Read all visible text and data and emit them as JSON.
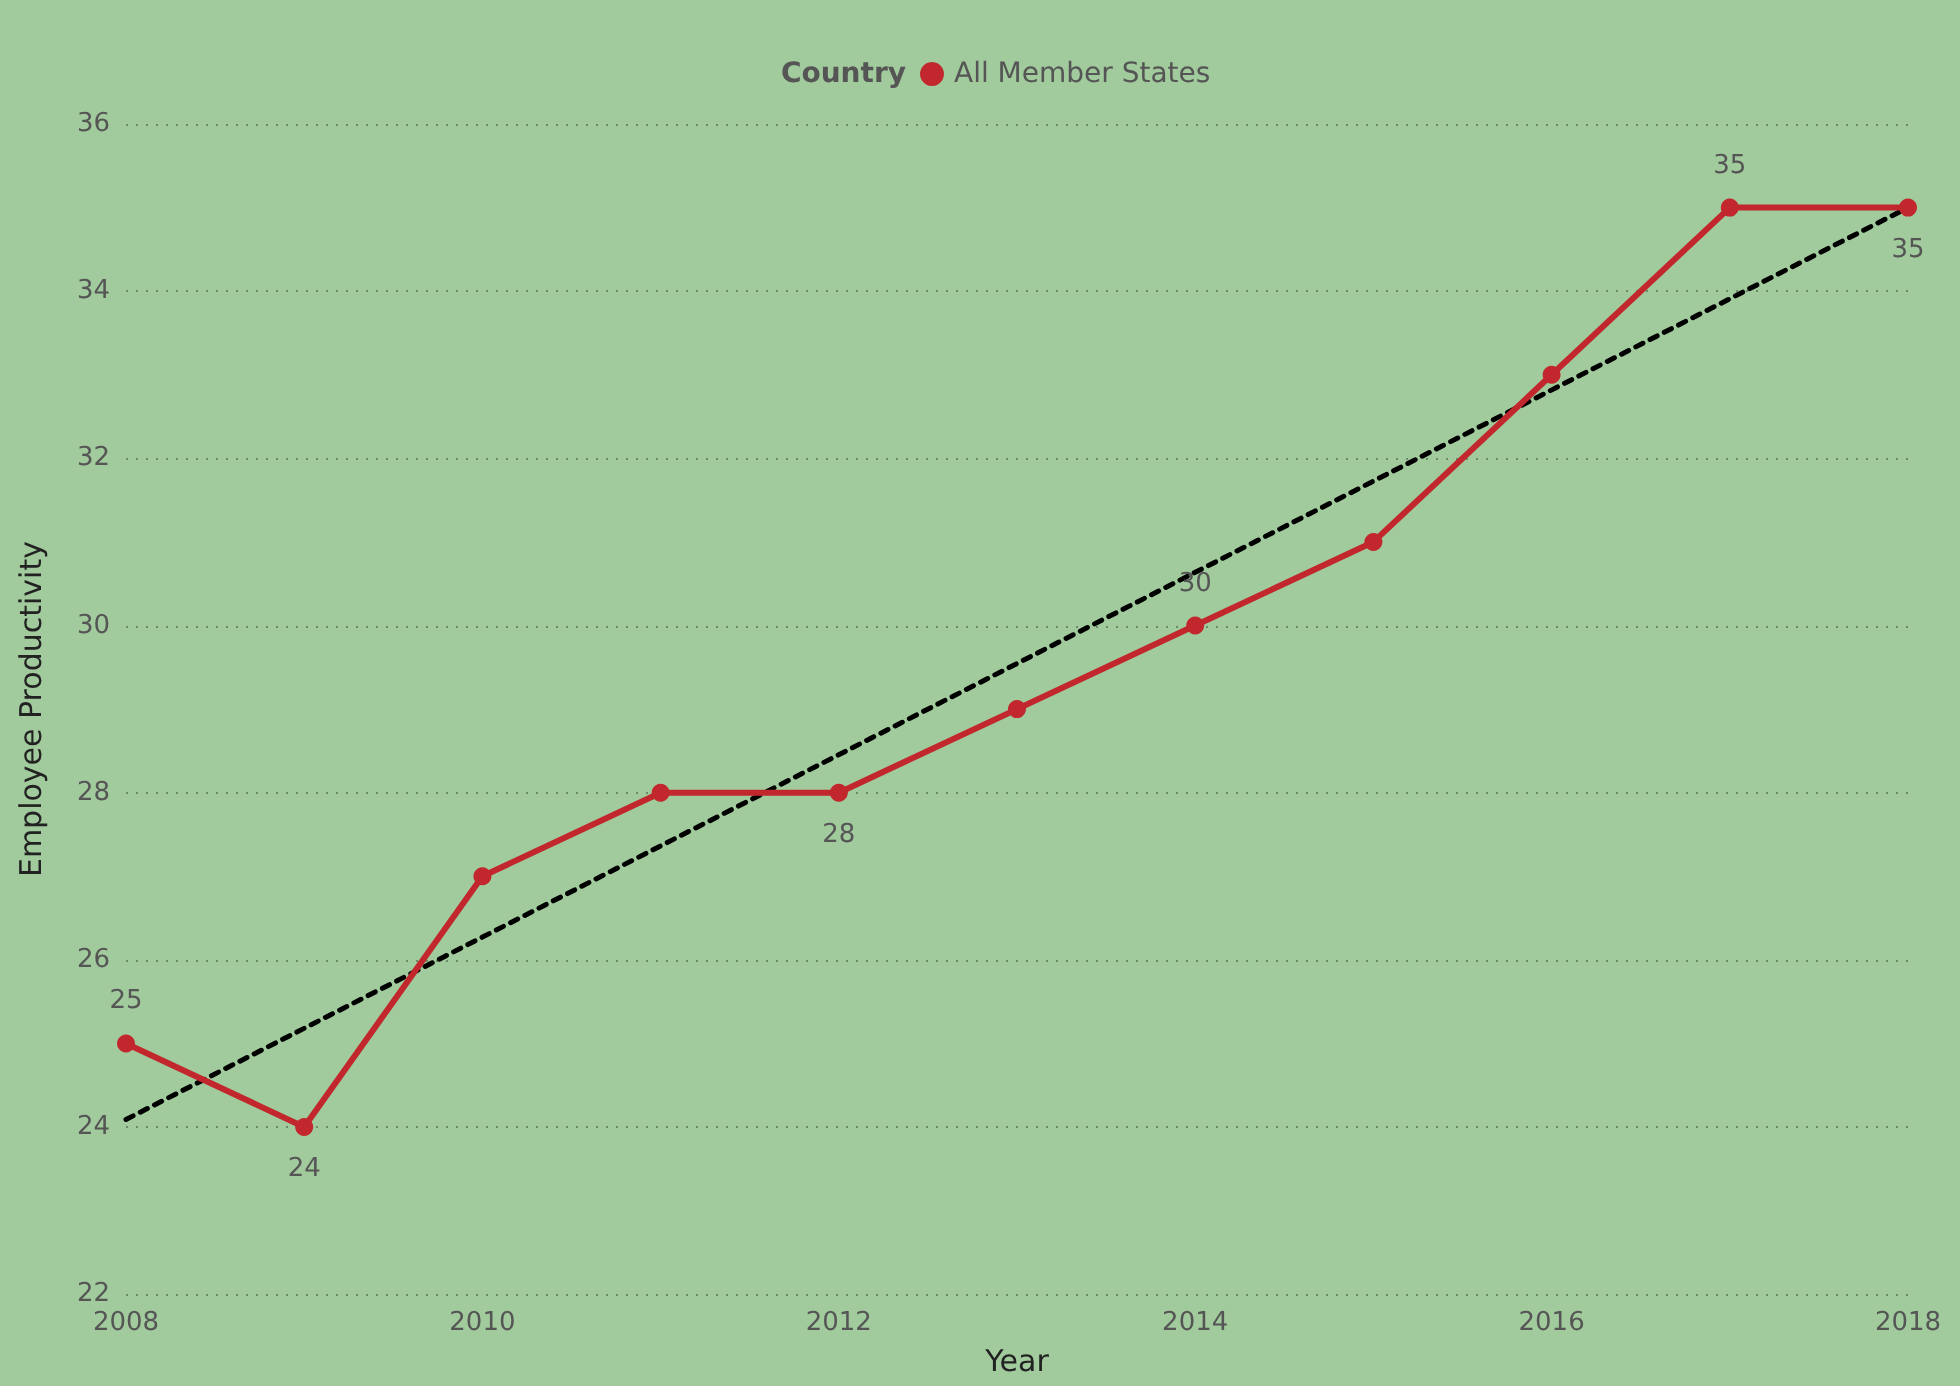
{
  "chart_data": {
    "type": "line",
    "xlabel": "Year",
    "ylabel": "Employee Productivity",
    "legend_title": "Country",
    "legend": "top",
    "grid": "y",
    "marker": "circle",
    "line_style": "solid",
    "x": [
      2008,
      2009,
      2010,
      2011,
      2012,
      2013,
      2014,
      2015,
      2016,
      2017,
      2018
    ],
    "xlim": [
      2008,
      2018
    ],
    "xticks": [
      2008,
      2010,
      2012,
      2014,
      2016,
      2018
    ],
    "ylim": [
      22,
      36
    ],
    "yticks": [
      22,
      24,
      26,
      28,
      30,
      32,
      34,
      36
    ],
    "series": [
      {
        "name": "All Member States",
        "color": "#c1272d",
        "values": [
          25,
          24,
          27,
          28,
          28,
          29,
          30,
          31,
          33,
          35,
          35
        ],
        "value_labels": [
          "25",
          "24",
          null,
          null,
          "28",
          null,
          "30",
          null,
          null,
          "35",
          "35"
        ]
      },
      {
        "type": "line",
        "x": [
          2008,
          2018
        ],
        "values": [
          24.09,
          35.0
        ],
        "color": "#000000",
        "line_style": "dashed",
        "marker": "none"
      }
    ]
  }
}
